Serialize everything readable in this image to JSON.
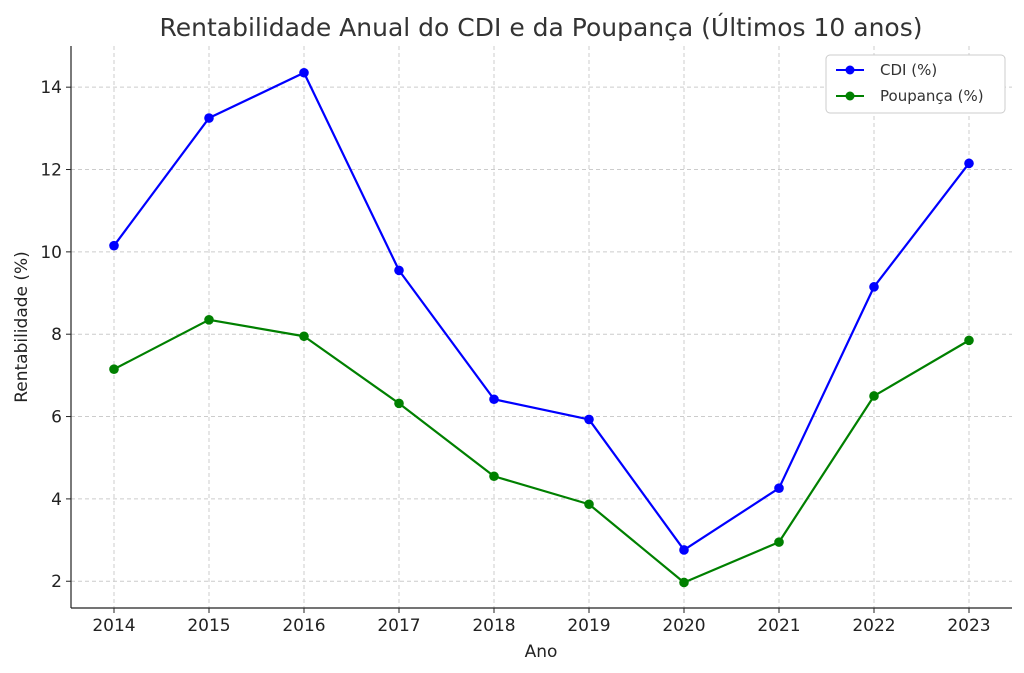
{
  "chart_data": {
    "type": "line",
    "title": "Rentabilidade Anual do CDI e da Poupança (Últimos 10 anos)",
    "xlabel": "Ano",
    "ylabel": "Rentabilidade (%)",
    "categories": [
      "2014",
      "2015",
      "2016",
      "2017",
      "2018",
      "2019",
      "2020",
      "2021",
      "2022",
      "2023"
    ],
    "ylim": [
      1.35,
      15.0
    ],
    "yticks": [
      2,
      4,
      6,
      8,
      10,
      12,
      14
    ],
    "grid": true,
    "legend_position": "top-right",
    "series": [
      {
        "name": "CDI (%)",
        "color": "#0000ff",
        "values": [
          10.15,
          13.25,
          14.35,
          9.55,
          6.42,
          5.93,
          2.76,
          4.26,
          9.15,
          12.15
        ]
      },
      {
        "name": "Poupança (%)",
        "color": "#008000",
        "values": [
          7.15,
          8.35,
          7.95,
          6.32,
          4.55,
          3.87,
          1.97,
          2.95,
          6.5,
          7.85
        ]
      }
    ]
  }
}
